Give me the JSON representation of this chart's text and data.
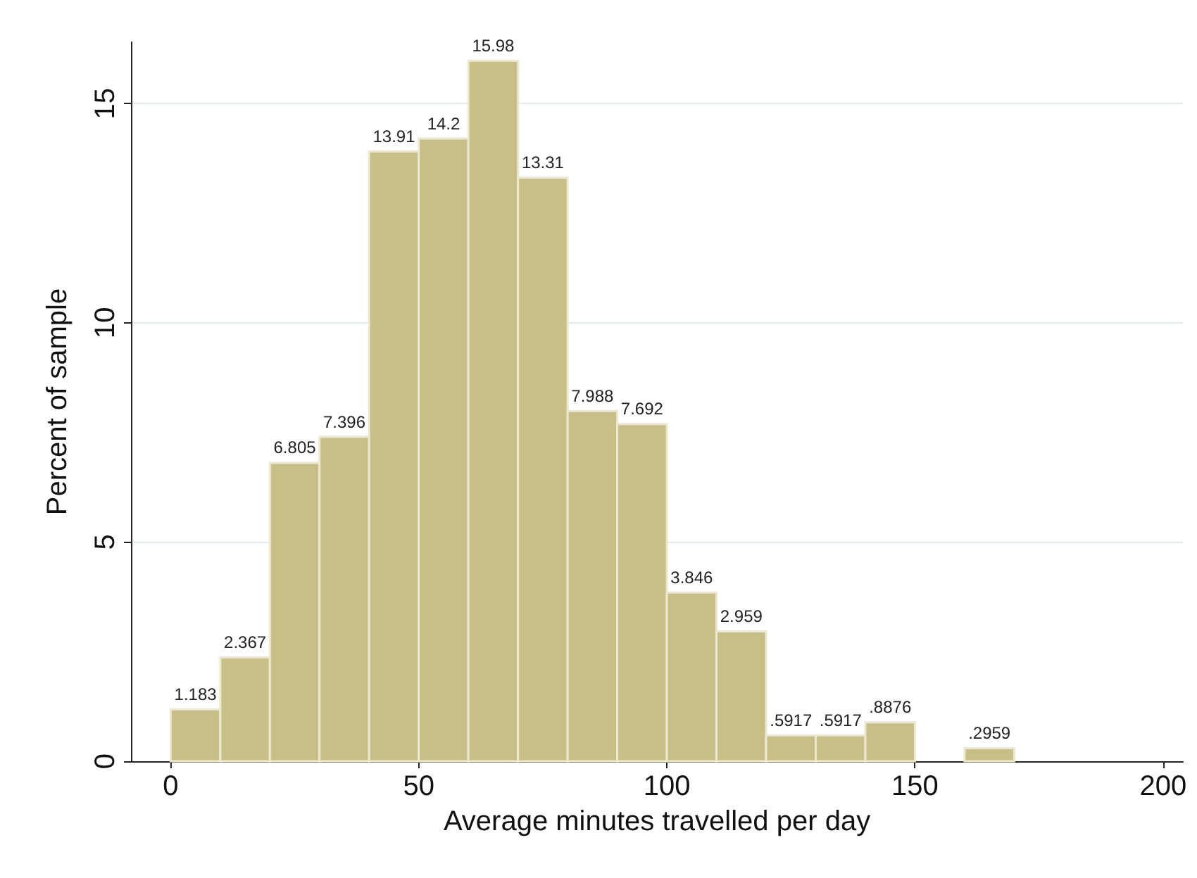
{
  "chart_data": {
    "type": "histogram",
    "xlabel": "Average minutes travelled per day",
    "ylabel": "Percent of sample",
    "bins": [
      0,
      10,
      20,
      30,
      40,
      50,
      60,
      70,
      80,
      90,
      100,
      110,
      120,
      130,
      140,
      150,
      160,
      170
    ],
    "values": [
      1.183,
      2.367,
      6.805,
      7.396,
      13.91,
      14.2,
      15.98,
      13.31,
      7.988,
      7.692,
      3.846,
      2.959,
      0.5917,
      0.5917,
      0.8876,
      0,
      0.2959
    ],
    "value_labels": [
      "1.183",
      "2.367",
      "6.805",
      "7.396",
      "13.91",
      "14.2",
      "15.98",
      "13.31",
      "7.988",
      "7.692",
      "3.846",
      "2.959",
      ".5917",
      ".5917",
      ".8876",
      null,
      ".2959"
    ],
    "color": "#c8bf88",
    "xlim": [
      -8,
      204
    ],
    "xticks": [
      0,
      50,
      100,
      150,
      200
    ],
    "ylim": [
      0,
      16.4
    ],
    "yticks": [
      0,
      5,
      10,
      15
    ],
    "grid": "y"
  }
}
